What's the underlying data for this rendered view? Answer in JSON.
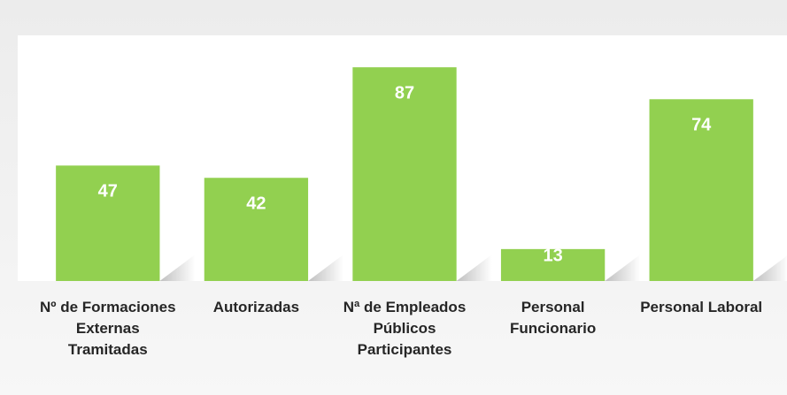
{
  "chart_data": {
    "type": "bar",
    "categories": [
      "Nº de Formaciones Externas Tramitadas",
      "Autorizadas",
      "Nª de Empleados Públicos Participantes",
      "Personal Funcionario",
      "Personal Laboral"
    ],
    "values": [
      47,
      42,
      87,
      13,
      74
    ],
    "color": "#92d050",
    "ylim": [
      0,
      100
    ]
  }
}
